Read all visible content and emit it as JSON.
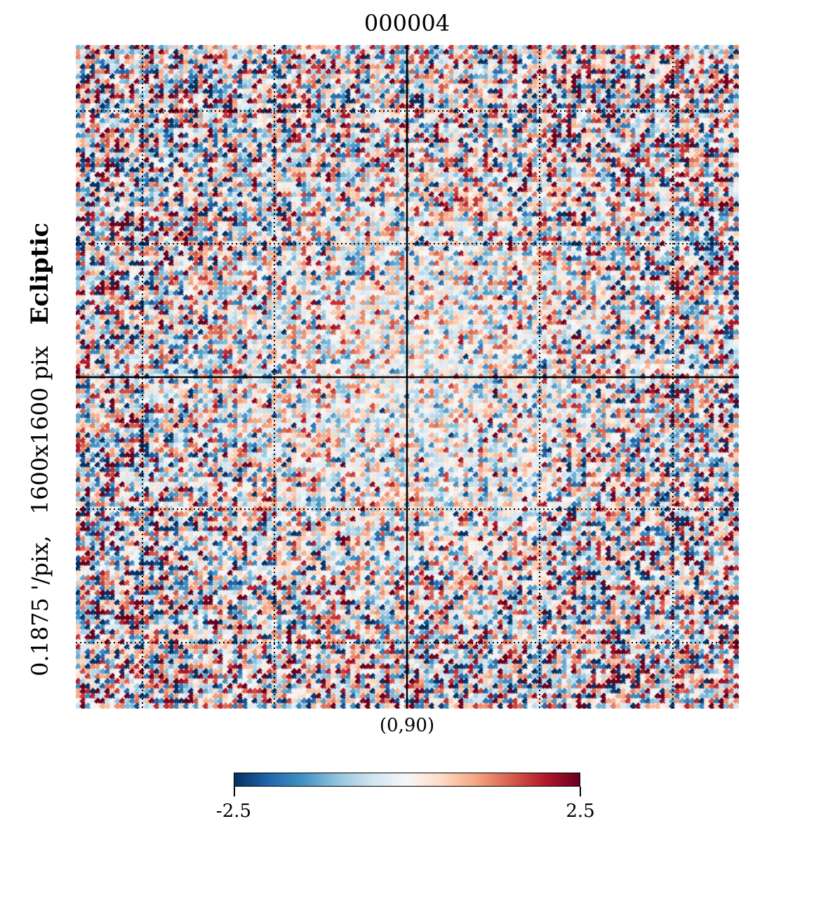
{
  "chart_data": {
    "type": "heatmap",
    "title": "000004",
    "projection_label": "(0,90)",
    "resolution_label": "0.1875 '/pix,",
    "size_label": "1600x1600 pix",
    "coord_label": "Ecliptic",
    "colormap": "RdBu_r",
    "colorbar": {
      "min": -2.5,
      "max": 2.5,
      "min_label": "-2.5",
      "max_label": "2.5",
      "colors": [
        "#053061",
        "#2166ac",
        "#4393c3",
        "#92c5de",
        "#d1e5f0",
        "#f7f7f7",
        "#fddbc7",
        "#f4a582",
        "#d6604d",
        "#b2182b",
        "#67001f"
      ]
    },
    "graticule": "dotted",
    "axes_lines": "solid"
  }
}
